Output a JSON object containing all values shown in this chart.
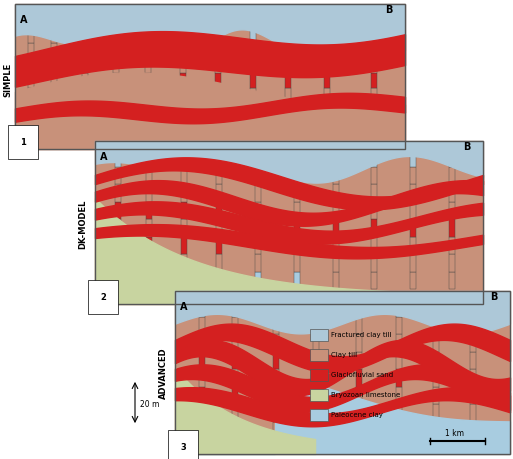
{
  "colors": {
    "fractured_clay_till": "#adc8d8",
    "clay_till": "#c8917a",
    "glaciofluvial_sand": "#d42020",
    "bryozoan_limestone": "#c8d4a0",
    "paleocene_clay": "#a8cce0",
    "background": "#ffffff"
  },
  "legend": [
    {
      "label": "Fractured clay till",
      "color": "#adc8d8"
    },
    {
      "label": "Clay till",
      "color": "#c8917a"
    },
    {
      "label": "Glaciofluvial sand",
      "color": "#d42020"
    },
    {
      "label": "Bryozoan limestone",
      "color": "#c8d4a0"
    },
    {
      "label": "Paleocene clay",
      "color": "#a8cce0"
    }
  ],
  "side_labels": [
    "SIMPLE",
    "DK-MODEL",
    "ADVANCED"
  ],
  "panel_numbers": [
    "1",
    "2",
    "3"
  ]
}
